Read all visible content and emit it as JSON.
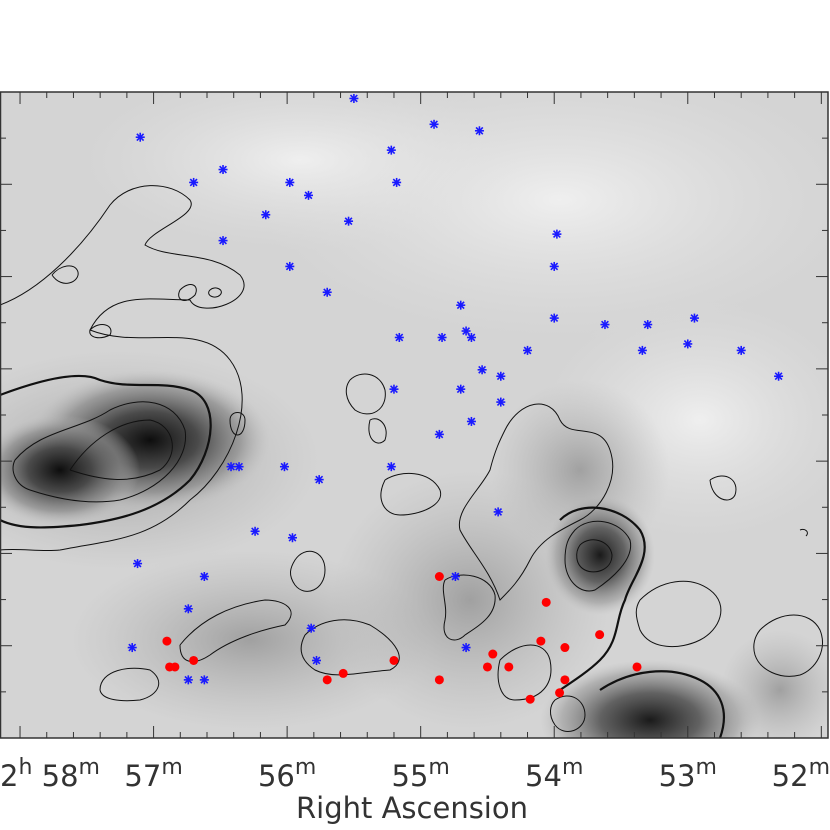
{
  "chart_data": {
    "type": "scatter",
    "background": "grayscale intensity map with contours",
    "xlabel": "Right Ascension",
    "ylabel": "",
    "xlim_minutes": [
      58.15,
      51.95
    ],
    "x_ticks": [
      {
        "value": 58.0,
        "h": "2",
        "h_unit": "h",
        "m": "58",
        "m_unit": "m"
      },
      {
        "value": 57.0,
        "m": "57",
        "m_unit": "m"
      },
      {
        "value": 56.0,
        "m": "56",
        "m_unit": "m"
      },
      {
        "value": 55.0,
        "m": "55",
        "m_unit": "m"
      },
      {
        "value": 54.0,
        "m": "54",
        "m_unit": "m"
      },
      {
        "value": 53.0,
        "m": "53",
        "m_unit": "m"
      },
      {
        "value": 52.0,
        "m": "52",
        "m_unit": "m"
      }
    ],
    "colors": {
      "blue_marker": "#1a1aff",
      "red_marker": "#ff0000",
      "axis": "#333333"
    },
    "series": [
      {
        "marker": "asterisk",
        "color": "#1a1aff",
        "points": [
          [
            55.5,
            0.99
          ],
          [
            54.9,
            0.95
          ],
          [
            54.56,
            0.94
          ],
          [
            57.1,
            0.93
          ],
          [
            55.22,
            0.91
          ],
          [
            56.48,
            0.88
          ],
          [
            55.18,
            0.86
          ],
          [
            56.7,
            0.86
          ],
          [
            55.98,
            0.86
          ],
          [
            55.84,
            0.84
          ],
          [
            56.16,
            0.81
          ],
          [
            55.54,
            0.8
          ],
          [
            53.98,
            0.78
          ],
          [
            56.48,
            0.77
          ],
          [
            54.0,
            0.73
          ],
          [
            55.98,
            0.73
          ],
          [
            55.7,
            0.69
          ],
          [
            54.7,
            0.67
          ],
          [
            54.0,
            0.65
          ],
          [
            52.95,
            0.65
          ],
          [
            53.62,
            0.64
          ],
          [
            53.3,
            0.64
          ],
          [
            54.66,
            0.63
          ],
          [
            55.16,
            0.62
          ],
          [
            54.84,
            0.62
          ],
          [
            54.62,
            0.62
          ],
          [
            54.2,
            0.6
          ],
          [
            53.34,
            0.6
          ],
          [
            53.0,
            0.61
          ],
          [
            52.6,
            0.6
          ],
          [
            54.54,
            0.57
          ],
          [
            54.4,
            0.56
          ],
          [
            52.32,
            0.56
          ],
          [
            54.7,
            0.54
          ],
          [
            55.2,
            0.54
          ],
          [
            54.4,
            0.52
          ],
          [
            54.62,
            0.49
          ],
          [
            54.86,
            0.47
          ],
          [
            56.42,
            0.42
          ],
          [
            56.36,
            0.42
          ],
          [
            56.02,
            0.42
          ],
          [
            55.22,
            0.42
          ],
          [
            55.76,
            0.4
          ],
          [
            54.42,
            0.35
          ],
          [
            56.24,
            0.32
          ],
          [
            55.96,
            0.31
          ],
          [
            57.12,
            0.27
          ],
          [
            54.74,
            0.25
          ],
          [
            56.62,
            0.25
          ],
          [
            56.74,
            0.2
          ],
          [
            55.82,
            0.17
          ],
          [
            57.16,
            0.14
          ],
          [
            54.66,
            0.14
          ],
          [
            55.78,
            0.12
          ],
          [
            56.74,
            0.09
          ],
          [
            56.62,
            0.09
          ]
        ]
      },
      {
        "marker": "dot",
        "color": "#ff0000",
        "points": [
          [
            54.86,
            0.25
          ],
          [
            54.06,
            0.21
          ],
          [
            56.9,
            0.15
          ],
          [
            54.1,
            0.15
          ],
          [
            53.66,
            0.16
          ],
          [
            53.92,
            0.14
          ],
          [
            54.46,
            0.13
          ],
          [
            56.7,
            0.12
          ],
          [
            55.2,
            0.12
          ],
          [
            56.88,
            0.11
          ],
          [
            56.84,
            0.11
          ],
          [
            54.5,
            0.11
          ],
          [
            54.34,
            0.11
          ],
          [
            55.58,
            0.1
          ],
          [
            53.38,
            0.11
          ],
          [
            55.7,
            0.09
          ],
          [
            54.86,
            0.09
          ],
          [
            53.92,
            0.09
          ],
          [
            53.96,
            0.07
          ],
          [
            54.18,
            0.06
          ]
        ]
      }
    ]
  }
}
